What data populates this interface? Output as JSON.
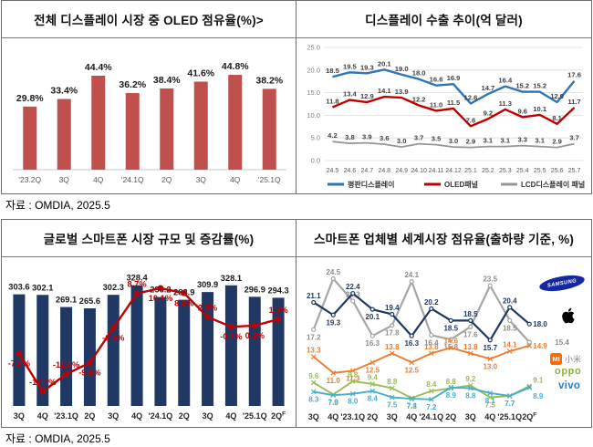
{
  "sources": {
    "top": "자료 : OMDIA, 2025.5",
    "bottom": "자료 : OMDIA, 2025.5"
  },
  "chart_data": [
    {
      "id": "oled-share",
      "type": "bar",
      "title": "전체 디스플레이 시장 중 OLED 점유율(%)>",
      "categories": [
        "'23.2Q",
        "3Q",
        "4Q",
        "'24.1Q",
        "2Q",
        "3Q",
        "4Q",
        "'25.1Q"
      ],
      "values": [
        29.8,
        33.4,
        44.4,
        36.2,
        38.4,
        41.6,
        44.8,
        38.2
      ],
      "value_suffix": "%",
      "bar_color": "#C0504D",
      "ylim": [
        0,
        50
      ],
      "grid": false,
      "legend": "none"
    },
    {
      "id": "display-export",
      "type": "line",
      "title": "디스플레이 수출 추이(억 달러)",
      "x": [
        "24.5",
        "24.6",
        "24.7",
        "24.8",
        "24.9",
        "24.10",
        "24.11",
        "24.12",
        "25.1",
        "25.2",
        "25.3",
        "25.4",
        "25.5",
        "25.6",
        "25.7"
      ],
      "ylim": [
        0,
        25
      ],
      "yticks": [
        0,
        5,
        10,
        15,
        20,
        25
      ],
      "grid": true,
      "legend_position": "bottom",
      "series": [
        {
          "name": "평판디스플레이",
          "color": "#2E75B6",
          "values": [
            18.5,
            19.5,
            19.3,
            20.1,
            19.0,
            18.0,
            16.6,
            16.9,
            12.6,
            14.7,
            16.4,
            15.2,
            15.2,
            12.9,
            17.6
          ]
        },
        {
          "name": "OLED패널",
          "color": "#C00000",
          "values": [
            11.8,
            13.4,
            12.9,
            14.1,
            13.9,
            12.2,
            11.0,
            11.5,
            7.6,
            9.2,
            11.3,
            9.6,
            10.1,
            8.1,
            11.7
          ]
        },
        {
          "name": "LCD디스플레이 패널",
          "color": "#969696",
          "values": [
            4.2,
            3.8,
            3.9,
            3.6,
            3.0,
            3.7,
            3.5,
            3.0,
            2.9,
            3.1,
            3.1,
            3.3,
            3.1,
            2.9,
            3.7
          ]
        }
      ]
    },
    {
      "id": "smartphone-market",
      "type": "bar+line",
      "title": "글로벌 스마트폰 시장 규모 및 증감률(%)",
      "categories": [
        "3Q",
        "4Q",
        "'23.1Q",
        "2Q",
        "3Q",
        "4Q",
        "'24.1Q",
        "2Q",
        "3Q",
        "4Q",
        "'25.1Q",
        "2Q"
      ],
      "forecast_suffix": "F",
      "bars": {
        "name": "시장 규모",
        "color": "#1F3864",
        "values": [
          303.6,
          302.1,
          269.1,
          265.6,
          302.3,
          328.4,
          296.2,
          288.9,
          309.9,
          328.1,
          296.9,
          294.3
        ]
      },
      "line": {
        "name": "증감률",
        "color": "#C00000",
        "suffix": "%",
        "values": [
          -7.2,
          -17.2,
          -12.6,
          -9.6,
          -0.4,
          8.7,
          10.1,
          8.8,
          2.5,
          -0.1,
          0.2,
          1.9
        ]
      }
    },
    {
      "id": "vendor-share",
      "type": "line",
      "title": "스마트폰 업체별 세계시장 점유율(출하량 기준, %)",
      "categories": [
        "3Q",
        "4Q",
        "'23.1Q",
        "2Q",
        "3Q",
        "4Q",
        "'24.1Q",
        "2Q",
        "3Q",
        "4Q",
        "'25.1Q",
        "2Q"
      ],
      "forecast_suffix": "F",
      "ylim": [
        6,
        26
      ],
      "grid": false,
      "legend_position": "right-logos",
      "series": [
        {
          "name": "Samsung",
          "color": "#1F3864",
          "values": [
            21.1,
            19.3,
            22.4,
            20.1,
            19.4,
            16.3,
            20.2,
            18.5,
            18.5,
            15.7,
            20.4,
            18.0
          ]
        },
        {
          "name": "Apple",
          "color": "#A6A6A6",
          "values": [
            17.2,
            24.5,
            21.3,
            16.3,
            17.8,
            24.1,
            16.4,
            15.8,
            17.6,
            23.5,
            18.5,
            15.4
          ]
        },
        {
          "name": "Xiaomi",
          "color": "#ED7D31",
          "values": [
            13.3,
            11.0,
            11.3,
            12.5,
            13.8,
            12.5,
            13.8,
            14.6,
            13.8,
            13.0,
            14.1,
            14.9
          ]
        },
        {
          "name": "OPPO",
          "color": "#9BBB59",
          "values": [
            9.6,
            7.9,
            9.8,
            9.4,
            8.8,
            7.4,
            8.4,
            8.8,
            9.2,
            7.5,
            7.7,
            9.1
          ]
        },
        {
          "name": "vivo",
          "color": "#45AECE",
          "values": [
            8.3,
            7.8,
            8.0,
            8.4,
            7.5,
            7.3,
            7.2,
            8.9,
            8.8,
            8.1,
            7.7,
            8.9
          ]
        }
      ],
      "brand_logos": [
        {
          "name": "samsung",
          "text": "SAMSUNG"
        },
        {
          "name": "apple",
          "text": ""
        },
        {
          "name": "xiaomi",
          "text": "MI",
          "text2": "小米"
        },
        {
          "name": "oppo",
          "text": "oppo"
        },
        {
          "name": "vivo",
          "text": "vivo"
        }
      ]
    }
  ]
}
